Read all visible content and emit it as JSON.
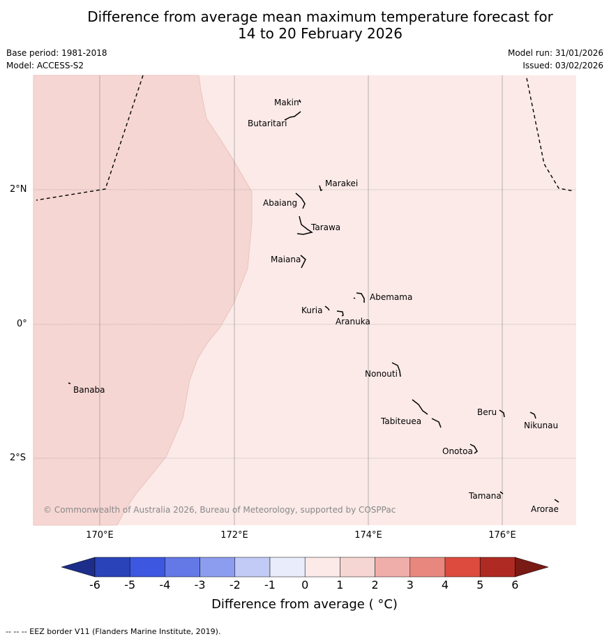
{
  "header": {
    "title_line1": "Difference from average mean maximum temperature forecast for",
    "title_line2": "14 to 20 February 2026",
    "base_period": "Base period: 1981-2018",
    "model": "Model: ACCESS-S2",
    "model_run": "Model run: 31/01/2026",
    "issued": "Issued: 03/02/2026"
  },
  "map": {
    "lat_labels": [
      "2°N",
      "0°",
      "2°S"
    ],
    "lon_labels": [
      "170°E",
      "172°E",
      "174°E",
      "176°E"
    ],
    "places": [
      "Makin",
      "Butaritari",
      "Marakei",
      "Abaiang",
      "Tarawa",
      "Maiana",
      "Abemama",
      "Kuria",
      "Aranuka",
      "Banaba",
      "Nonouti",
      "Beru",
      "Nikunau",
      "Tabiteuea",
      "Onotoa",
      "Tamana",
      "Arorae"
    ],
    "copyright": "© Commonwealth of Australia 2026, Bureau of Meteorology, supported by COSPPac",
    "colors": {
      "bin_0_1": "#fbeae8",
      "bin_1_2": "#f6d6d3"
    }
  },
  "colorbar": {
    "ticks": [
      "-6",
      "-5",
      "-4",
      "-3",
      "-2",
      "-1",
      "0",
      "1",
      "2",
      "3",
      "4",
      "5",
      "6"
    ],
    "colors": [
      "#1c2d8a",
      "#2a43b8",
      "#3d57e0",
      "#6478e6",
      "#8c9cee",
      "#c2caf6",
      "#e9ecfb",
      "#fbeae8",
      "#f6d6d3",
      "#efaeaa",
      "#e8877e",
      "#dc4b3d",
      "#ae2a22",
      "#7a1a14"
    ],
    "label": "Difference from average ( °C)"
  },
  "footnote": "-- -- -- EEZ border V11 (Flanders Marine Institute, 2019)."
}
